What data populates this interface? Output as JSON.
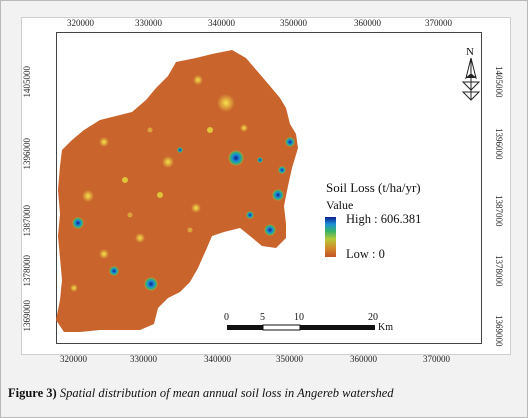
{
  "map": {
    "x_ticks_top": [
      "320000",
      "330000",
      "340000",
      "350000",
      "360000",
      "370000"
    ],
    "x_ticks_bottom": [
      "320000",
      "330000",
      "340000",
      "350000",
      "360000",
      "370000"
    ],
    "y_ticks_left": [
      "1405000",
      "1396000",
      "1387000",
      "1378000",
      "1369000"
    ],
    "y_ticks_right": [
      "1405000",
      "1396000",
      "1387000",
      "1378000",
      "1369000"
    ],
    "north_arrow_label": "N",
    "region_fill": "#c8642c",
    "colors": {
      "high": "#0a1f8f",
      "mid_blue": "#1e8fd6",
      "green": "#35b26a",
      "yellow": "#e0c43a",
      "low": "#c0532a"
    }
  },
  "legend": {
    "title": "Soil Loss (t/ha/yr)",
    "subtitle": "Value",
    "high_label": "High : 606.381",
    "low_label": "Low : 0"
  },
  "scale_bar": {
    "labels": [
      "0",
      "5",
      "10",
      "20"
    ],
    "unit": "Km"
  },
  "caption": {
    "figure_number": "Figure 3)",
    "text": "Spatial distribution of mean annual soil loss in Angereb watershed"
  }
}
